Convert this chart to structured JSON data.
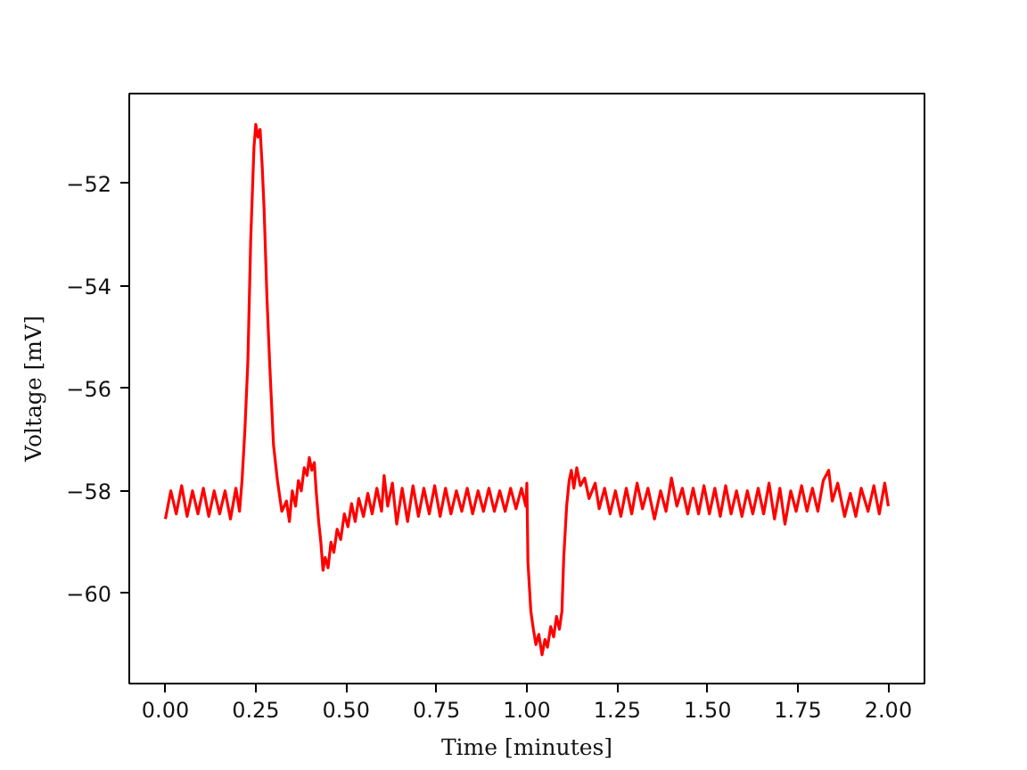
{
  "chart_data": {
    "type": "line",
    "xlabel": "Time [minutes]",
    "ylabel": "Voltage [mV]",
    "xlim": [
      -0.1,
      2.1
    ],
    "ylim": [
      -61.76,
      -50.25
    ],
    "xticks": [
      {
        "value": 0,
        "label": "0.00"
      },
      {
        "value": 0.25,
        "label": "0.25"
      },
      {
        "value": 0.5,
        "label": "0.50"
      },
      {
        "value": 0.75,
        "label": "0.75"
      },
      {
        "value": 1,
        "label": "1.00"
      },
      {
        "value": 1.25,
        "label": "1.25"
      },
      {
        "value": 1.5,
        "label": "1.50"
      },
      {
        "value": 1.75,
        "label": "1.75"
      },
      {
        "value": 2,
        "label": "2.00"
      }
    ],
    "yticks": [
      {
        "value": -60,
        "label": "−60"
      },
      {
        "value": -58,
        "label": "−58"
      },
      {
        "value": -56,
        "label": "−56"
      },
      {
        "value": -54,
        "label": "−54"
      },
      {
        "value": -52,
        "label": "−52"
      }
    ],
    "grid": false,
    "line_style": "solid",
    "series": [
      {
        "color": "#ff0000",
        "x": [
          0.0,
          0.015,
          0.03,
          0.045,
          0.06,
          0.075,
          0.09,
          0.105,
          0.12,
          0.135,
          0.15,
          0.165,
          0.18,
          0.195,
          0.205,
          0.212,
          0.22,
          0.228,
          0.236,
          0.245,
          0.25,
          0.256,
          0.262,
          0.268,
          0.273,
          0.281,
          0.289,
          0.299,
          0.31,
          0.322,
          0.335,
          0.343,
          0.351,
          0.36,
          0.368,
          0.376,
          0.384,
          0.392,
          0.398,
          0.405,
          0.412,
          0.417,
          0.424,
          0.43,
          0.436,
          0.442,
          0.45,
          0.458,
          0.466,
          0.475,
          0.485,
          0.495,
          0.505,
          0.515,
          0.525,
          0.535,
          0.548,
          0.56,
          0.572,
          0.585,
          0.598,
          0.605,
          0.615,
          0.628,
          0.64,
          0.655,
          0.67,
          0.685,
          0.7,
          0.715,
          0.73,
          0.745,
          0.76,
          0.775,
          0.79,
          0.805,
          0.82,
          0.835,
          0.85,
          0.865,
          0.88,
          0.895,
          0.91,
          0.925,
          0.94,
          0.955,
          0.97,
          0.985,
          0.997,
          1.0,
          1.003,
          1.011,
          1.018,
          1.025,
          1.033,
          1.042,
          1.05,
          1.057,
          1.066,
          1.074,
          1.082,
          1.09,
          1.097,
          1.102,
          1.11,
          1.117,
          1.123,
          1.13,
          1.138,
          1.148,
          1.16,
          1.172,
          1.189,
          1.2,
          1.215,
          1.23,
          1.245,
          1.26,
          1.275,
          1.29,
          1.305,
          1.32,
          1.335,
          1.353,
          1.37,
          1.385,
          1.4,
          1.415,
          1.43,
          1.445,
          1.46,
          1.475,
          1.49,
          1.505,
          1.52,
          1.535,
          1.55,
          1.565,
          1.58,
          1.595,
          1.61,
          1.625,
          1.64,
          1.655,
          1.67,
          1.685,
          1.7,
          1.714,
          1.73,
          1.745,
          1.76,
          1.775,
          1.79,
          1.805,
          1.82,
          1.835,
          1.845,
          1.86,
          1.879,
          1.895,
          1.91,
          1.925,
          1.944,
          1.96,
          1.975,
          1.99,
          2.0
        ],
        "values": [
          -58.55,
          -58.0,
          -58.45,
          -57.9,
          -58.5,
          -58.0,
          -58.45,
          -57.95,
          -58.5,
          -58.0,
          -58.45,
          -58.0,
          -58.55,
          -57.95,
          -58.4,
          -57.8,
          -56.8,
          -55.5,
          -53.1,
          -51.3,
          -50.85,
          -51.1,
          -50.95,
          -51.7,
          -52.5,
          -54.25,
          -55.6,
          -57.1,
          -57.8,
          -58.4,
          -58.2,
          -58.6,
          -58.0,
          -58.3,
          -57.8,
          -58.0,
          -57.55,
          -57.7,
          -57.35,
          -57.6,
          -57.45,
          -58.0,
          -58.6,
          -59.0,
          -59.55,
          -59.3,
          -59.5,
          -59.0,
          -59.2,
          -58.75,
          -58.95,
          -58.45,
          -58.7,
          -58.25,
          -58.6,
          -58.15,
          -58.5,
          -58.05,
          -58.45,
          -57.95,
          -58.4,
          -57.7,
          -58.3,
          -57.85,
          -58.65,
          -57.95,
          -58.6,
          -57.9,
          -58.5,
          -57.95,
          -58.45,
          -57.9,
          -58.5,
          -57.95,
          -58.45,
          -58.0,
          -58.4,
          -57.95,
          -58.45,
          -58.0,
          -58.4,
          -57.95,
          -58.4,
          -58.0,
          -58.4,
          -57.95,
          -58.35,
          -57.95,
          -58.3,
          -57.85,
          -59.4,
          -60.35,
          -60.7,
          -61.0,
          -60.8,
          -61.2,
          -60.9,
          -61.05,
          -60.65,
          -60.85,
          -60.45,
          -60.7,
          -60.35,
          -59.3,
          -58.3,
          -57.8,
          -57.6,
          -57.95,
          -57.55,
          -57.9,
          -57.75,
          -58.15,
          -57.85,
          -58.35,
          -57.95,
          -58.45,
          -58.0,
          -58.5,
          -57.95,
          -58.45,
          -57.85,
          -58.35,
          -57.95,
          -58.55,
          -58.0,
          -58.4,
          -57.75,
          -58.3,
          -57.95,
          -58.45,
          -57.95,
          -58.45,
          -57.9,
          -58.45,
          -57.95,
          -58.5,
          -57.9,
          -58.45,
          -58.0,
          -58.5,
          -58.0,
          -58.45,
          -57.95,
          -58.45,
          -57.85,
          -58.55,
          -57.95,
          -58.65,
          -58.0,
          -58.4,
          -57.9,
          -58.4,
          -57.95,
          -58.4,
          -57.8,
          -57.6,
          -58.2,
          -57.85,
          -58.5,
          -58.05,
          -58.5,
          -57.95,
          -58.4,
          -57.9,
          -58.45,
          -57.85,
          -58.3
        ]
      }
    ]
  }
}
